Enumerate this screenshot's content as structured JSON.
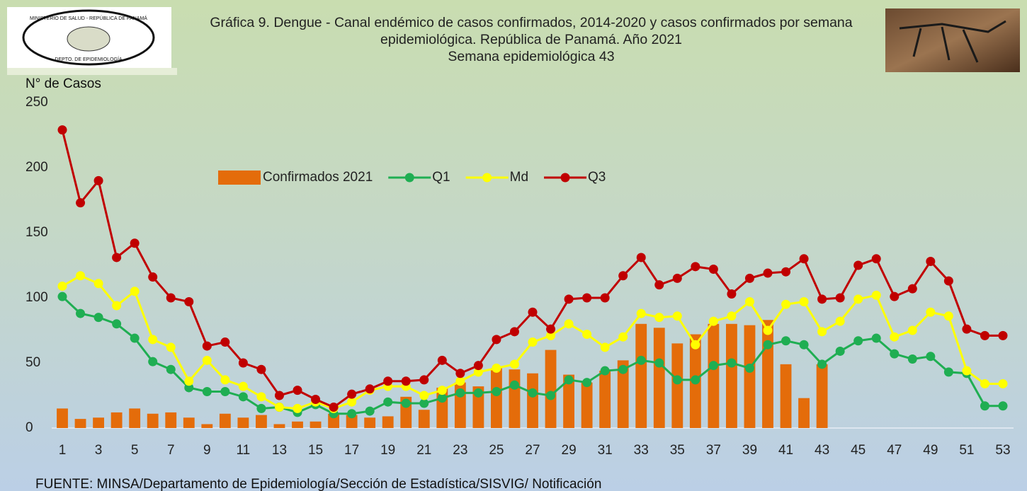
{
  "logo": {
    "top_text": "MINISTERIO DE SALUD - REPÚBLICA DE PANAMÁ",
    "bottom_text": "DEPTO. DE EPIDEMIOLOGÍA"
  },
  "chart_data": {
    "type": "bar",
    "title": "Gráfica 9. Dengue - Canal endémico de casos confirmados, 2014-2020 y casos confirmados por semana epidemiológica. República de Panamá. Año 2021",
    "subtitle": "Semana epidemiológica 43",
    "y_label": "N° de Casos",
    "source": "FUENTE: MINSA/Departamento de Epidemiología/Sección de Estadística/SISVIG/ Notificación",
    "categories": [
      1,
      null,
      3,
      null,
      5,
      null,
      7,
      null,
      9,
      null,
      11,
      null,
      13,
      null,
      15,
      null,
      17,
      null,
      19,
      null,
      21,
      null,
      23,
      null,
      25,
      null,
      27,
      null,
      29,
      null,
      31,
      null,
      33,
      null,
      35,
      null,
      37,
      null,
      39,
      null,
      41,
      null,
      43,
      null,
      45,
      null,
      47,
      null,
      49,
      null,
      51,
      null,
      53
    ],
    "ylim": [
      0,
      250
    ],
    "yticks": [
      0,
      50,
      100,
      150,
      200,
      250
    ],
    "grid": false,
    "legend": "top",
    "series": [
      {
        "name": "Confirmados 2021",
        "type": "bar",
        "color": "#E46C0A",
        "values": [
          15,
          7,
          8,
          12,
          15,
          11,
          12,
          8,
          3,
          11,
          8,
          10,
          3,
          5,
          5,
          11,
          10,
          8,
          9,
          24,
          14,
          31,
          35,
          32,
          46,
          45,
          42,
          60,
          41,
          35,
          44,
          52,
          80,
          77,
          65,
          72,
          80,
          80,
          79,
          83,
          49,
          23,
          49,
          null,
          null,
          null,
          null,
          null,
          null,
          null,
          null,
          null,
          null
        ]
      },
      {
        "name": "Q1",
        "type": "line",
        "color": "#1FAE52",
        "values": [
          101,
          88,
          85,
          80,
          69,
          51,
          45,
          31,
          28,
          28,
          24,
          15,
          16,
          12,
          18,
          11,
          11,
          13,
          20,
          19,
          19,
          23,
          27,
          27,
          28,
          33,
          27,
          25,
          37,
          35,
          44,
          45,
          52,
          50,
          37,
          37,
          48,
          50,
          46,
          64,
          67,
          64,
          49,
          59,
          67,
          69,
          57,
          53,
          55,
          43,
          42,
          17,
          17
        ]
      },
      {
        "name": "Md",
        "type": "line",
        "color": "#FFFF00",
        "values": [
          109,
          117,
          111,
          94,
          105,
          68,
          62,
          36,
          52,
          37,
          32,
          24,
          16,
          15,
          20,
          15,
          20,
          29,
          32,
          32,
          25,
          29,
          36,
          43,
          46,
          49,
          66,
          71,
          80,
          72,
          62,
          70,
          88,
          85,
          86,
          64,
          82,
          86,
          97,
          75,
          95,
          97,
          74,
          82,
          99,
          102,
          70,
          75,
          89,
          86,
          44,
          34,
          34
        ]
      },
      {
        "name": "Q3",
        "type": "line",
        "color": "#C00000",
        "values": [
          229,
          173,
          190,
          131,
          142,
          116,
          100,
          97,
          63,
          66,
          50,
          45,
          25,
          29,
          22,
          16,
          26,
          30,
          36,
          36,
          37,
          52,
          42,
          48,
          68,
          74,
          89,
          76,
          99,
          100,
          100,
          117,
          131,
          110,
          115,
          124,
          122,
          103,
          115,
          119,
          120,
          130,
          99,
          100,
          125,
          130,
          101,
          107,
          128,
          113,
          76,
          71,
          71
        ]
      }
    ]
  }
}
